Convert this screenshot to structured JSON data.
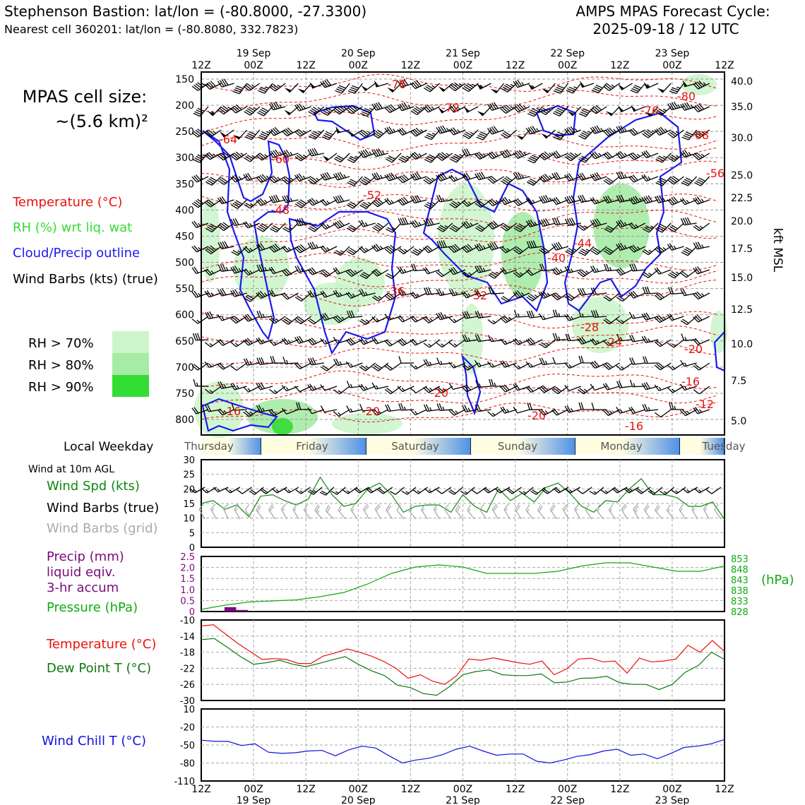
{
  "header": {
    "title": "Stephenson Bastion: lat/lon = (-80.8000, -27.3300)",
    "subtitle": "Nearest cell 360201: lat/lon = (-80.8080, 332.7823)",
    "cycle_label": "AMPS MPAS Forecast Cycle:",
    "cycle_value": "2025-09-18 / 12 UTC"
  },
  "cell_size": {
    "line1": "MPAS cell size:",
    "line2": "~(5.6 km)²"
  },
  "legend": {
    "temperature": "Temperature (°C)",
    "rh": "RH (%) wrt liq. wat",
    "cloud": "Cloud/Precip outline",
    "barbs": "Wind Barbs (kts) (true)",
    "rh70": "RH > 70%",
    "rh80": "RH > 80%",
    "rh90": "RH > 90%"
  },
  "colors": {
    "temperature": "#e8120c",
    "rh_label": "#33dd33",
    "cloud": "#1a1aee",
    "rh70": "#ccf5cc",
    "rh80": "#a6eba6",
    "rh90": "#33dd33",
    "wind_speed": "#118811",
    "grid_barb": "#aaaaaa",
    "precip": "#7a0a7a",
    "pressure": "#11aa11",
    "dewpoint": "#117711",
    "windchill": "#1111dd"
  },
  "time_axis": {
    "ticks": [
      "12Z",
      "00Z",
      "12Z",
      "00Z",
      "12Z",
      "00Z",
      "12Z",
      "00Z",
      "12Z",
      "00Z",
      "12Z"
    ],
    "dates": [
      "19 Sep",
      "20 Sep",
      "21 Sep",
      "22 Sep",
      "23 Sep"
    ]
  },
  "weekday": {
    "label": "Local Weekday",
    "days": [
      "Thursday",
      "Friday",
      "Saturday",
      "Sunday",
      "Monday",
      "Tuesday"
    ]
  },
  "chart_data": [
    {
      "type": "contour",
      "panel": "upper-air cross-section",
      "y_left_ticks": [
        "150",
        "200",
        "250",
        "300",
        "350",
        "400",
        "450",
        "500",
        "550",
        "600",
        "650",
        "700",
        "750",
        "800"
      ],
      "y_right_ticks": [
        "40.0",
        "35.0",
        "30.0",
        "25.0",
        "22.5",
        "20.0",
        "17.5",
        "15.0",
        "12.5",
        "10.0",
        "7.5",
        "5.0"
      ],
      "y_right_label": "kft MSL",
      "temperature_labels": [
        "-76",
        "-72",
        "-76",
        "-80",
        "-64",
        "-68",
        "-60",
        "-56",
        "-52",
        "-48",
        "-44",
        "-40",
        "-36",
        "-32",
        "-28",
        "-24",
        "-20",
        "-16",
        "-12",
        "-16",
        "-20",
        "-20",
        "-20",
        "-16"
      ]
    },
    {
      "type": "line",
      "panel": "10m wind",
      "title": "Wind at 10m AGL",
      "labels": {
        "speed": "Wind Spd (kts)",
        "barbs_true": "Wind Barbs (true)",
        "barbs_grid": "Wind Barbs (grid)"
      },
      "y_ticks": [
        "30",
        "25",
        "20",
        "15",
        "10",
        "5",
        "0"
      ],
      "ylim": [
        0,
        30
      ],
      "series": [
        {
          "name": "Wind Spd (kts)",
          "values": [
            15,
            16,
            13,
            14.5,
            10.5,
            17.5,
            18,
            16,
            14.5,
            16.5,
            24,
            18,
            14,
            15,
            20,
            22,
            18,
            12,
            14,
            14.5,
            14.5,
            12,
            18,
            14,
            12,
            20,
            16,
            18.5,
            15.5,
            20.5,
            22,
            18.5,
            14,
            12,
            16,
            15.5,
            20,
            23.5,
            18,
            18,
            17,
            14,
            14,
            15.5,
            9.5
          ]
        }
      ],
      "wind_dir_true": [
        240,
        240,
        245,
        240,
        235,
        230,
        235,
        240,
        240,
        235,
        230,
        225,
        230,
        235,
        240,
        240,
        235,
        230,
        230,
        235,
        240,
        235,
        230,
        230,
        235,
        240,
        240,
        235,
        230,
        230,
        235,
        240,
        240,
        235,
        230,
        235,
        240,
        240,
        235,
        230,
        230,
        235,
        240,
        240,
        235
      ],
      "wind_dir_grid": [
        330,
        330,
        335,
        330,
        325,
        320,
        325,
        330,
        330,
        325,
        320,
        315,
        320,
        325,
        330,
        330,
        325,
        320,
        320,
        325,
        330,
        325,
        320,
        320,
        325,
        330,
        330,
        325,
        320,
        320,
        325,
        330,
        330,
        325,
        320,
        325,
        330,
        330,
        325,
        320,
        320,
        325,
        330,
        330,
        325
      ]
    },
    {
      "type": "bar+line",
      "panel": "precipitation and pressure",
      "labels": {
        "precip": "Precip (mm)",
        "precip2": "liquid eqiv.",
        "precip3": "3-hr accum",
        "pressure": "Pressure (hPa)",
        "pressure_unit": "(hPa)"
      },
      "y_left_ticks": [
        "2.5",
        "2.0",
        "1.5",
        "1.0",
        "0.5",
        "0"
      ],
      "y_right_ticks": [
        "853",
        "848",
        "843",
        "838",
        "833",
        "828"
      ],
      "precip_ylim": [
        0,
        2.5
      ],
      "pressure_ylim": [
        828,
        854
      ],
      "precip_values": [
        0.0,
        0.0,
        0.2,
        0.07,
        0,
        0,
        0,
        0,
        0,
        0,
        0,
        0,
        0,
        0,
        0,
        0,
        0,
        0,
        0,
        0,
        0,
        0,
        0,
        0,
        0,
        0,
        0,
        0,
        0,
        0,
        0,
        0,
        0,
        0,
        0,
        0,
        0,
        0,
        0,
        0,
        0,
        0,
        0,
        0,
        0
      ],
      "pressure_x": [
        0,
        12,
        24,
        36,
        48,
        60,
        72,
        84,
        96,
        108,
        120,
        132,
        144,
        156,
        168,
        180,
        192,
        204,
        216,
        228,
        240,
        252,
        264
      ],
      "pressure_values": [
        829,
        831,
        832.5,
        833,
        833.5,
        835,
        837,
        841,
        846,
        849,
        850,
        849,
        846,
        846,
        846,
        847,
        849.5,
        851,
        851,
        849,
        847,
        847,
        849.5
      ]
    },
    {
      "type": "line",
      "panel": "temperature and dew point",
      "labels": {
        "temperature": "Temperature (°C)",
        "dewpoint": "Dew Point T (°C)"
      },
      "y_ticks": [
        "-10",
        "-14",
        "-18",
        "-22",
        "-26",
        "-30"
      ],
      "ylim": [
        -30,
        -10
      ],
      "series": [
        {
          "name": "Temperature (°C)",
          "values": [
            -11.5,
            -11.2,
            -13.5,
            -15.8,
            -17.8,
            -19.8,
            -19.6,
            -19.8,
            -20.8,
            -20.8,
            -19,
            -18.2,
            -17.2,
            -18,
            -19,
            -20.3,
            -22,
            -24.5,
            -23.6,
            -25.2,
            -26,
            -23.8,
            -19.7,
            -20,
            -19.4,
            -20,
            -20.6,
            -21,
            -20.2,
            -23.6,
            -22.2,
            -19.7,
            -19.5,
            -20.4,
            -20.2,
            -23.2,
            -19.5,
            -20.4,
            -20.2,
            -19.7,
            -16.3,
            -18,
            -15.1,
            -17.8
          ]
        },
        {
          "name": "Dew Point T (°C)",
          "values": [
            -14.9,
            -14.6,
            -16.8,
            -19.1,
            -21,
            -20.6,
            -20,
            -21,
            -21.6,
            -20.8,
            -19.9,
            -19.1,
            -21,
            -22.6,
            -23.8,
            -26.2,
            -26.8,
            -28.3,
            -28.7,
            -26.5,
            -23.6,
            -22.8,
            -22.4,
            -23.6,
            -23.8,
            -23.8,
            -23.4,
            -25.6,
            -25.4,
            -24.5,
            -24.4,
            -24,
            -25.6,
            -26,
            -26,
            -27.3,
            -26,
            -23,
            -21.3,
            -18,
            -19.8
          ]
        }
      ]
    },
    {
      "type": "line",
      "panel": "wind chill",
      "labels": {
        "windchill": "Wind Chill T (°C)"
      },
      "y_ticks": [
        "10",
        "-20",
        "-50",
        "-80",
        "-110"
      ],
      "ylim": [
        -110,
        10
      ],
      "series": [
        {
          "name": "Wind Chill T (°C)",
          "values": [
            -42,
            -44,
            -44,
            -51,
            -48,
            -62,
            -64,
            -63,
            -60,
            -59,
            -68,
            -58,
            -52,
            -55,
            -68,
            -80,
            -75,
            -72,
            -66,
            -57,
            -52,
            -60,
            -67,
            -65,
            -65,
            -77,
            -80,
            -75,
            -69,
            -66,
            -60,
            -57,
            -67,
            -65,
            -73,
            -64,
            -54,
            -52,
            -48,
            -41
          ]
        }
      ]
    }
  ]
}
